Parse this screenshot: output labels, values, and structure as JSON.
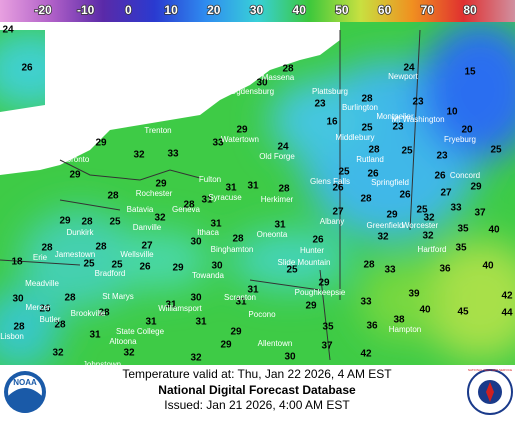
{
  "legend": {
    "labels": [
      -20,
      -10,
      0,
      10,
      20,
      30,
      40,
      50,
      60,
      70,
      80
    ],
    "colors": [
      "#e8a0e0",
      "#b060c8",
      "#5a2aa8",
      "#2a3ad0",
      "#2f8cf0",
      "#38d0d8",
      "#3cc83c",
      "#c8e040",
      "#f09020",
      "#e03030",
      "#d090a0"
    ]
  },
  "temperatures": [
    24,
    26,
    28,
    30,
    24,
    15,
    28,
    23,
    23,
    10,
    16,
    25,
    23,
    20,
    29,
    33,
    29,
    32,
    33,
    24,
    28,
    25,
    23,
    25,
    29,
    25,
    26,
    26,
    29,
    31,
    31,
    28,
    26,
    26,
    27,
    29,
    28,
    28,
    28,
    25,
    33,
    31,
    37,
    29,
    28,
    25,
    32,
    31,
    31,
    27,
    29,
    32,
    35,
    40,
    28,
    28,
    27,
    30,
    28,
    26,
    32,
    32,
    35,
    18,
    25,
    25,
    26,
    29,
    30,
    28,
    33,
    36,
    40,
    25,
    30,
    28,
    30,
    29,
    31,
    39,
    42,
    26,
    28,
    31,
    33,
    31,
    29,
    40,
    45,
    44,
    28,
    28,
    31,
    31,
    29,
    31,
    35,
    36,
    38,
    29,
    37,
    30,
    42,
    32,
    32,
    32
  ],
  "cities": [
    "Massena",
    "Ogdensburg",
    "Plattsburg",
    "Newport",
    "Burlington",
    "Montpelier",
    "Mt Washington",
    "Middlebury",
    "Trenton",
    "Toronto",
    "Watertown",
    "Old Forge",
    "Rutland",
    "Fryeburg",
    "Glens Falls",
    "Springfield",
    "Concord",
    "Fulton",
    "Rochester",
    "Syracuse",
    "Herkimer",
    "Batavia",
    "Geneva",
    "Albany",
    "Greenfield",
    "Worcester",
    "Dunkirk",
    "Danville",
    "Ithaca",
    "Oneonta",
    "Hunter",
    "Erie",
    "Jamestown",
    "Wellsville",
    "Binghamton",
    "Bradford",
    "Towanda",
    "Slide Mountain",
    "Hartford",
    "Meadville",
    "St Marys",
    "Scranton",
    "Poughkeepsie",
    "Mercer",
    "Brookville",
    "Williamsport",
    "Butler",
    "State College",
    "Pocono",
    "Lisbon",
    "Altoona",
    "Allentown",
    "Johnstown",
    "Hampton"
  ],
  "footer": {
    "valid": "Temperature valid at: Thu, Jan 22 2026, 4 AM EST",
    "title": "National Digital Forecast Database",
    "issued": "Issued: Jan 21 2026, 4:00 AM EST"
  },
  "logos": {
    "left": "NOAA",
    "right": "NATIONAL WEATHER SERVICE"
  }
}
